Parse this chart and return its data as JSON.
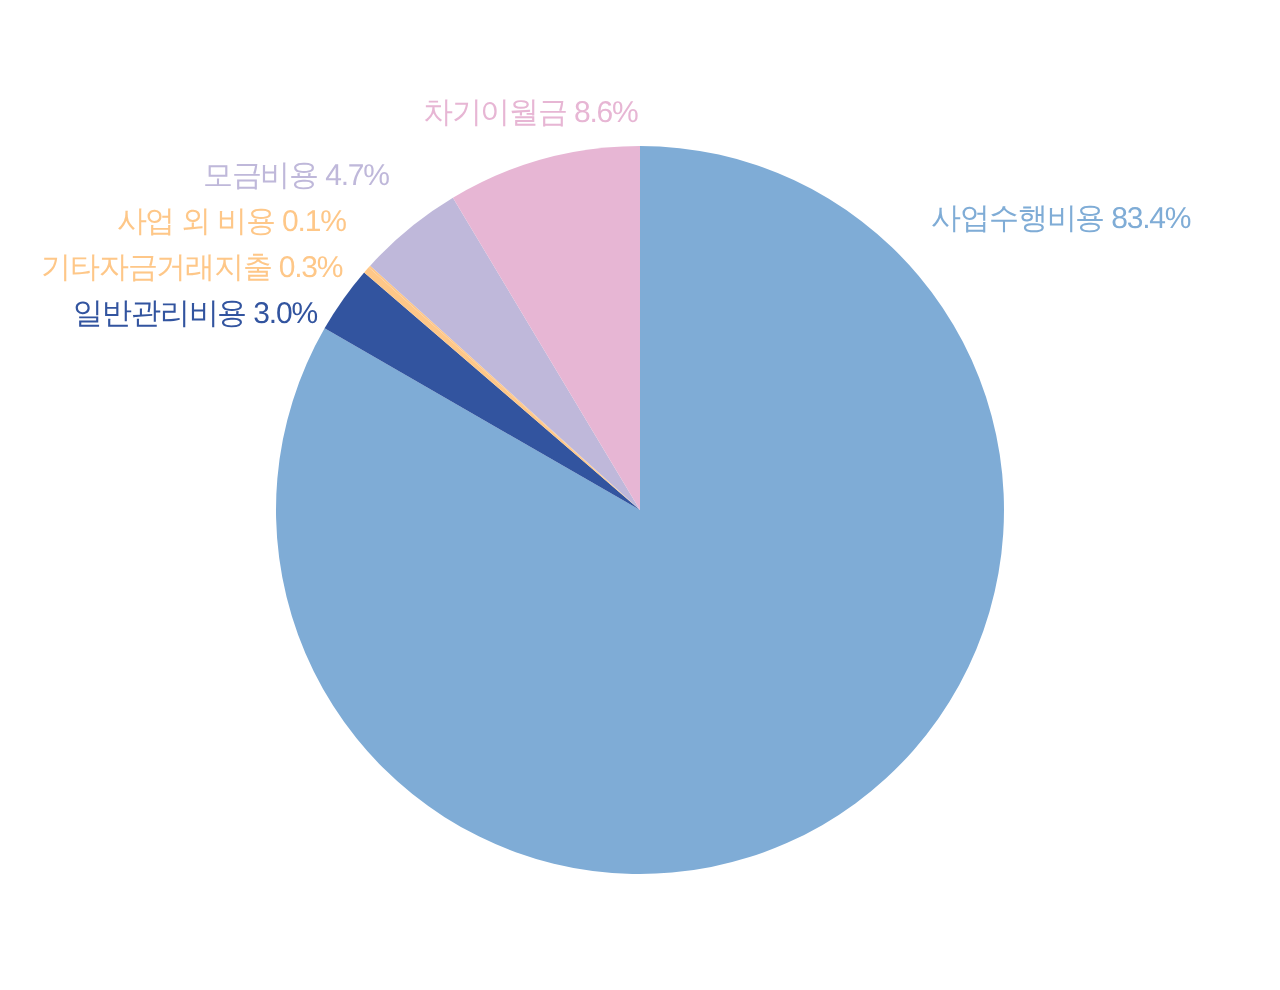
{
  "chart_data": {
    "type": "pie",
    "categories": [
      "사업수행비용",
      "일반관리비용",
      "기타자금거래지출",
      "사업 외 비용",
      "모금비용",
      "차기이월금"
    ],
    "values": [
      83.4,
      3.0,
      0.3,
      0.1,
      4.7,
      8.6
    ],
    "colors": [
      "#7facd6",
      "#32549f",
      "#fec788",
      "#fec788",
      "#bfb8da",
      "#e7b6d4"
    ],
    "data_labels": true,
    "value_labels": [
      "83.4%",
      "3.0%",
      "0.3%",
      "0.1%",
      "4.7%",
      "8.6%"
    ]
  }
}
